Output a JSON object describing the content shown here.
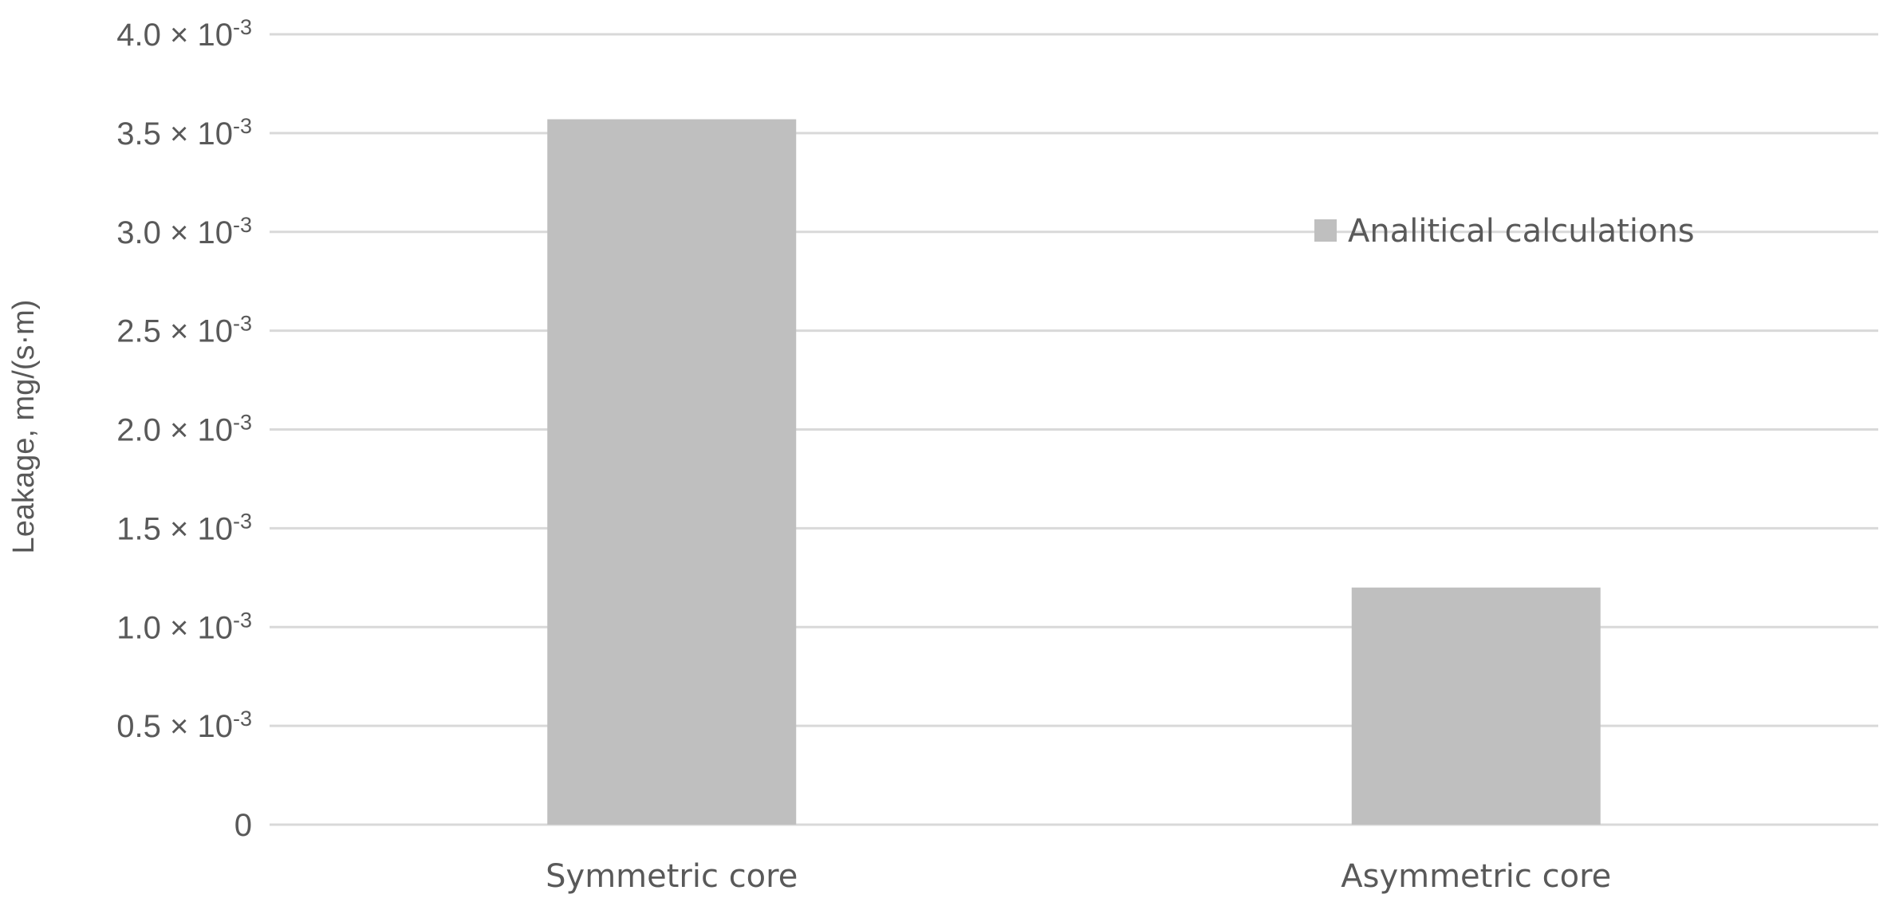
{
  "chart_data": {
    "type": "bar",
    "categories": [
      "Symmetric core",
      "Asymmetric core"
    ],
    "series": [
      {
        "name": "Analitical calculations",
        "values": [
          0.00357,
          0.0012
        ],
        "color": "#bfbfbf"
      }
    ],
    "ylabel": "Leakage, mg/(s·m)",
    "ylim": [
      0,
      0.004
    ],
    "y_ticks": [
      {
        "value": 0,
        "mantissa": "0",
        "exponent": ""
      },
      {
        "value": 0.0005,
        "mantissa": "0.5 × 10",
        "exponent": "-3"
      },
      {
        "value": 0.001,
        "mantissa": "1.0 × 10",
        "exponent": "-3"
      },
      {
        "value": 0.0015,
        "mantissa": "1.5 × 10",
        "exponent": "-3"
      },
      {
        "value": 0.002,
        "mantissa": "2.0 × 10",
        "exponent": "-3"
      },
      {
        "value": 0.0025,
        "mantissa": "2.5 × 10",
        "exponent": "-3"
      },
      {
        "value": 0.003,
        "mantissa": "3.0 × 10",
        "exponent": "-3"
      },
      {
        "value": 0.0035,
        "mantissa": "3.5 × 10",
        "exponent": "-3"
      },
      {
        "value": 0.004,
        "mantissa": "4.0 × 10",
        "exponent": "-3"
      }
    ],
    "grid": true,
    "legend_position": "top-right",
    "gridline_color": "#d9d9d9",
    "text_color": "#595959"
  }
}
